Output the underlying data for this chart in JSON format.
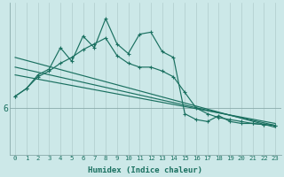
{
  "xlabel": "Humidex (Indice chaleur)",
  "bg_color": "#cce8e8",
  "line_color": "#1a7060",
  "grid_color": "#b0cccc",
  "hline_color": "#8aabab",
  "y_tick_val": 6.0,
  "y_tick_label": "6",
  "xlim": [
    -0.5,
    23.5
  ],
  "ylim": [
    4.8,
    8.7
  ],
  "curve1_y": [
    6.3,
    6.5,
    6.85,
    7.0,
    7.55,
    7.2,
    7.85,
    7.55,
    8.3,
    7.65,
    7.4,
    7.9,
    7.95,
    7.45,
    7.3,
    5.85,
    5.7,
    5.65,
    5.8,
    5.65,
    5.6,
    5.6,
    5.57,
    5.55
  ],
  "curve2_y": [
    6.3,
    6.5,
    6.8,
    6.95,
    7.15,
    7.3,
    7.5,
    7.65,
    7.8,
    7.35,
    7.15,
    7.05,
    7.05,
    6.95,
    6.8,
    6.4,
    6.0,
    5.85,
    5.75,
    5.7,
    5.65,
    5.6,
    5.57,
    5.55
  ],
  "lines": [
    [
      [
        0,
        7.3
      ],
      [
        23,
        5.5
      ]
    ],
    [
      [
        0,
        7.05
      ],
      [
        23,
        5.55
      ]
    ],
    [
      [
        0,
        6.85
      ],
      [
        23,
        5.6
      ]
    ]
  ]
}
